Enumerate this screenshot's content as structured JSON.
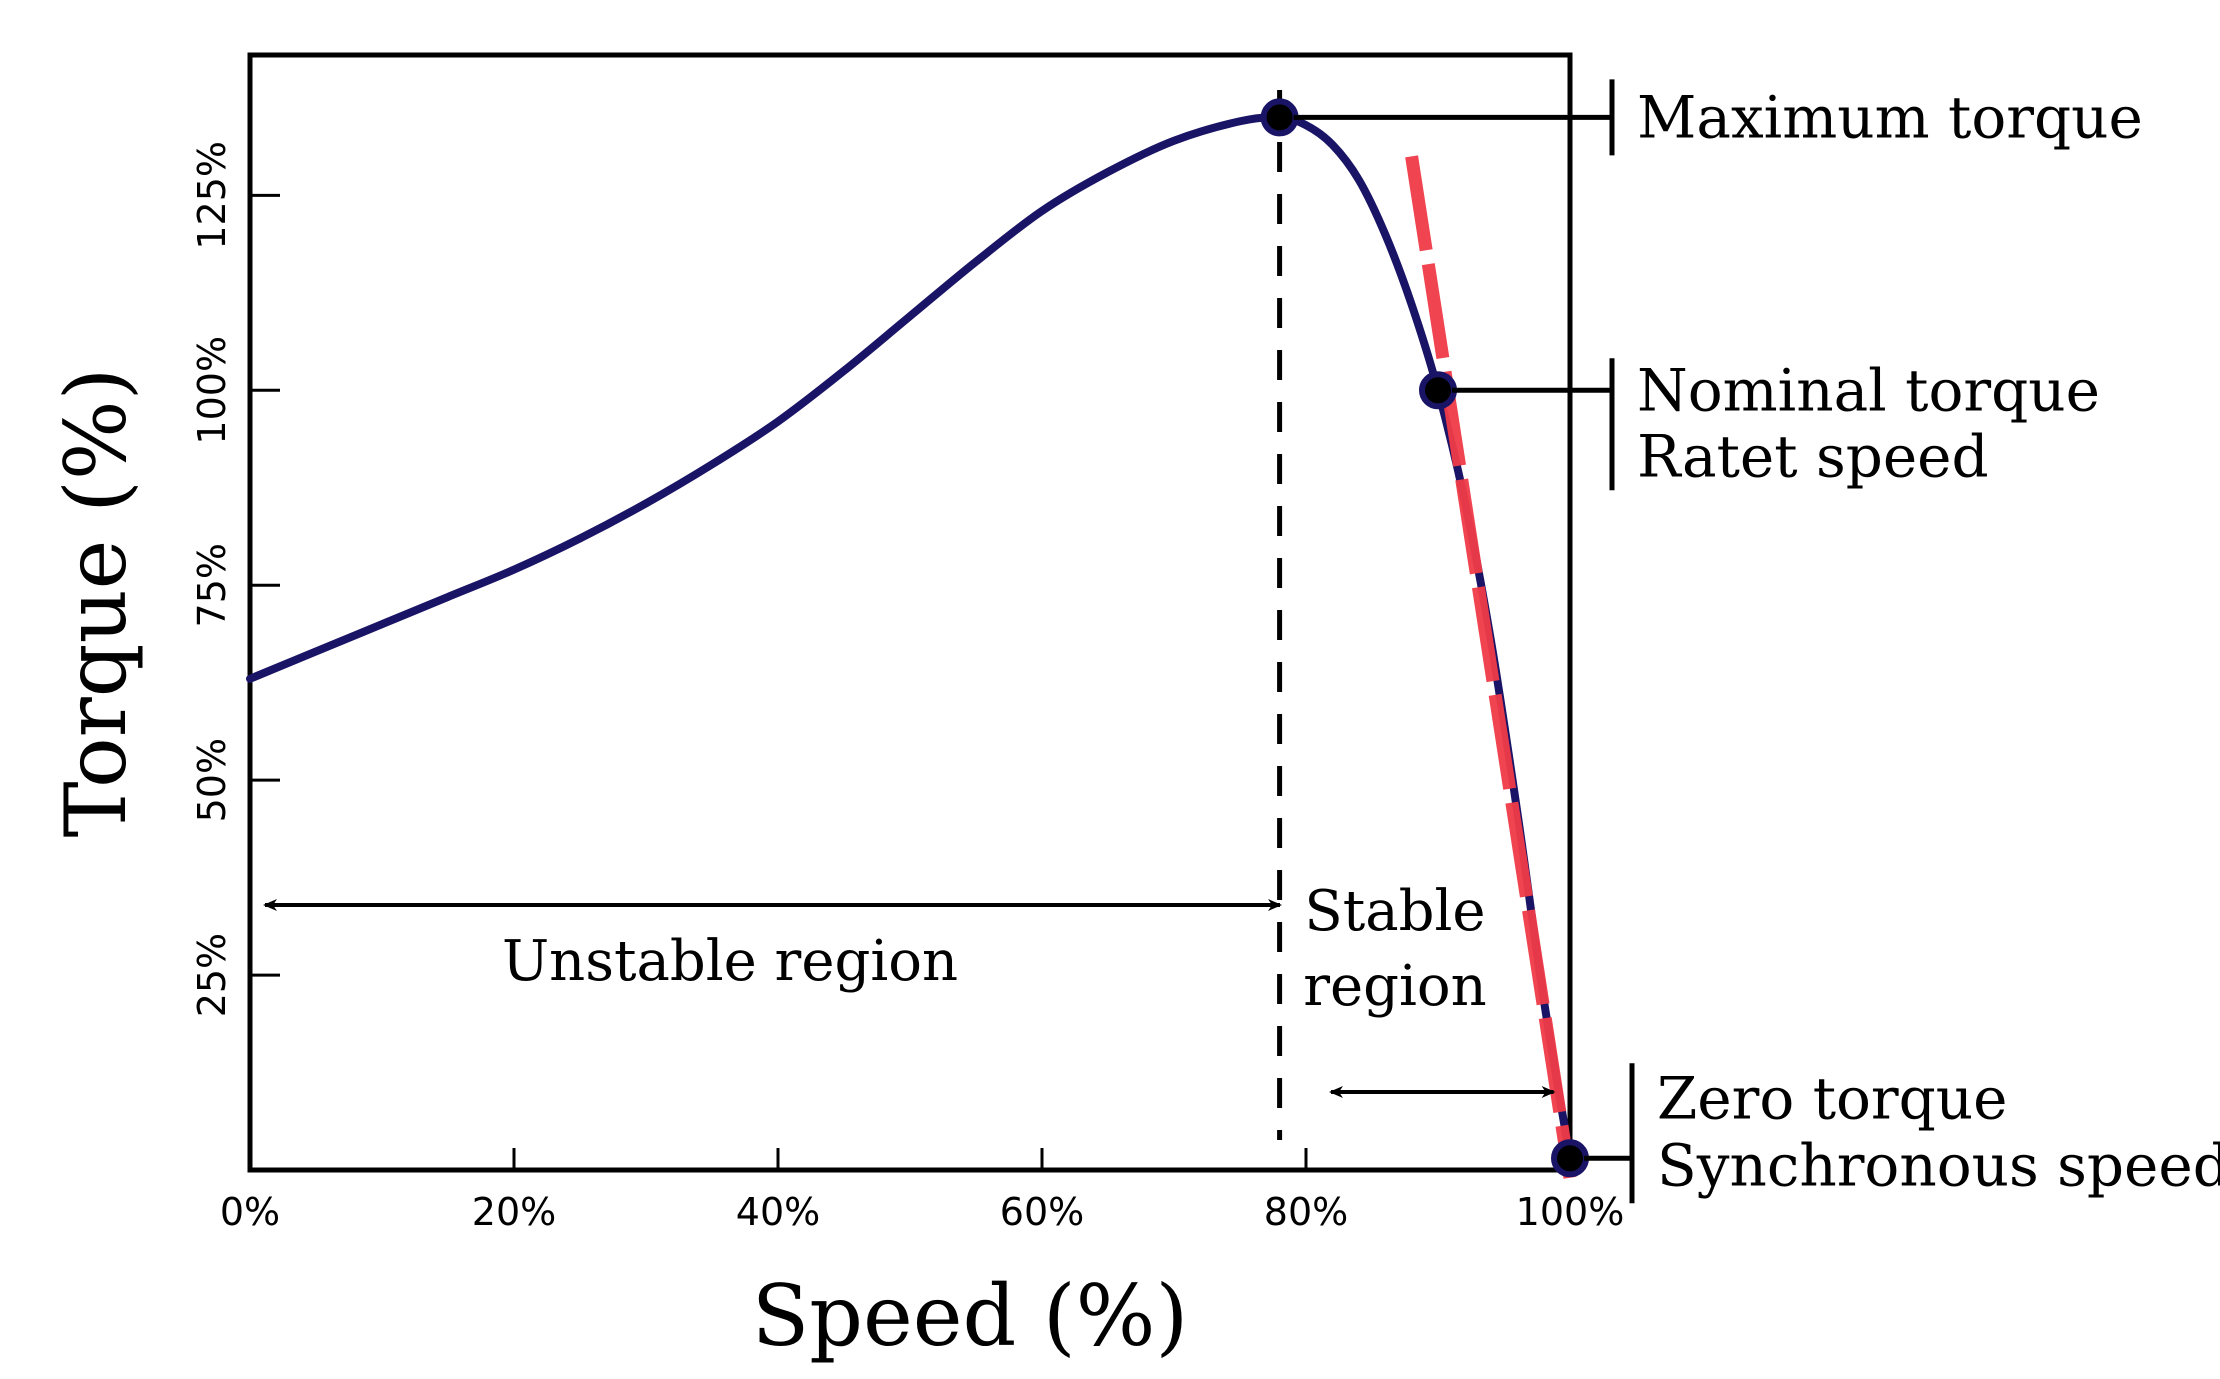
{
  "chart_data": {
    "type": "line",
    "title": "",
    "xlabel": "Speed (%)",
    "ylabel": "Torque  (%)",
    "xlim": [
      0,
      100
    ],
    "ylim": [
      0,
      143
    ],
    "x_ticks": [
      0,
      20,
      40,
      60,
      80,
      100
    ],
    "x_tick_labels": [
      "0%",
      "20%",
      "40%",
      "60%",
      "80%",
      "100%"
    ],
    "y_ticks": [
      25,
      50,
      75,
      100,
      125
    ],
    "y_tick_labels": [
      "25%",
      "50%",
      "75%",
      "100%",
      "125%"
    ],
    "grid": false,
    "series": [
      {
        "name": "",
        "color": "#1a1466",
        "x": [
          0,
          5,
          10,
          15,
          20,
          25,
          30,
          35,
          40,
          45,
          50,
          55,
          60,
          65,
          70,
          75,
          78,
          80,
          82,
          84,
          86,
          88,
          90,
          92,
          94,
          96,
          98,
          100
        ],
        "y": [
          63,
          66.5,
          70,
          73.5,
          77,
          81,
          85.5,
          90.5,
          96,
          102.5,
          109.5,
          116.5,
          123,
          128,
          132,
          134.5,
          135,
          134,
          131.5,
          127,
          120,
          111,
          100,
          86,
          68,
          46,
          22,
          1.5
        ]
      }
    ],
    "markers": [
      {
        "x": 78,
        "y": 135
      },
      {
        "x": 90,
        "y": 100
      },
      {
        "x": 100,
        "y": 1.5
      }
    ],
    "tangent_line": {
      "color": "#f03a47",
      "x": [
        88,
        100
      ],
      "y": [
        130,
        -1
      ]
    },
    "vertical_dashed_line": {
      "x": 78
    },
    "annotations": [
      {
        "label": "Maximum torque",
        "lines": [
          "Maximum torque"
        ]
      },
      {
        "label": "Nominal torque Ratet speed",
        "lines": [
          "Nominal torque",
          "Ratet speed"
        ]
      },
      {
        "label": "Zero torque Synchronous speed",
        "lines": [
          "Zero torque",
          "Synchronous speed"
        ]
      }
    ],
    "regions": [
      {
        "label": "Unstable region",
        "lines": [
          "Unstable region"
        ],
        "x_range": [
          0,
          75
        ]
      },
      {
        "label": "Stable region",
        "lines": [
          "Stable",
          "region"
        ],
        "x_range": [
          80,
          98
        ]
      }
    ]
  }
}
